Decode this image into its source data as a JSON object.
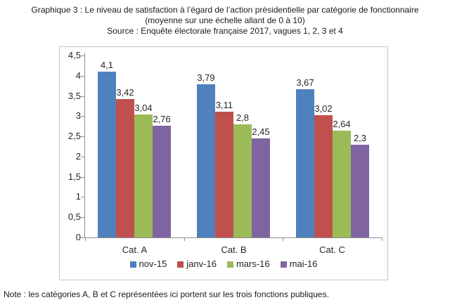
{
  "title": {
    "line1": "Graphique 3 : Le niveau de satisfaction à l’égard de l’action présidentielle par catégorie de fonctionnaire",
    "line2": "(moyenne sur une échelle allant de 0 à 10)",
    "line3": "Source : Enquête électorale française 2017, vagues 1, 2, 3 et 4"
  },
  "note": "Note : les catégories A, B et C représentées ici portent sur les trois fonctions publiques.",
  "chart_data": {
    "type": "bar",
    "categories": [
      "Cat. A",
      "Cat. B",
      "Cat. C"
    ],
    "series": [
      {
        "name": "nov-15",
        "color": "#4F81BD",
        "values": [
          4.1,
          3.79,
          3.67
        ],
        "value_labels": [
          "4,1",
          "3,79",
          "3,67"
        ]
      },
      {
        "name": "janv-16",
        "color": "#C0504D",
        "values": [
          3.42,
          3.11,
          3.02
        ],
        "value_labels": [
          "3,42",
          "3,11",
          "3,02"
        ]
      },
      {
        "name": "mars-16",
        "color": "#9BBB59",
        "values": [
          3.04,
          2.8,
          2.64
        ],
        "value_labels": [
          "3,04",
          "2,8",
          "2,64"
        ]
      },
      {
        "name": "mai-16",
        "color": "#8064A2",
        "values": [
          2.76,
          2.45,
          2.3
        ],
        "value_labels": [
          "2,76",
          "2,45",
          "2,3"
        ]
      }
    ],
    "ylim": [
      0,
      4.5
    ],
    "ytick_step": 0.5,
    "ytick_labels": [
      "0",
      "0,5",
      "1",
      "1,5",
      "2",
      "2,5",
      "3",
      "3,5",
      "4",
      "4,5"
    ],
    "grid": false,
    "legend_position": "bottom",
    "decimal_separator": ",",
    "colors": {
      "axis": "#8E8E8E",
      "frame_border": "#C6C6C6",
      "text": "#262626"
    }
  }
}
